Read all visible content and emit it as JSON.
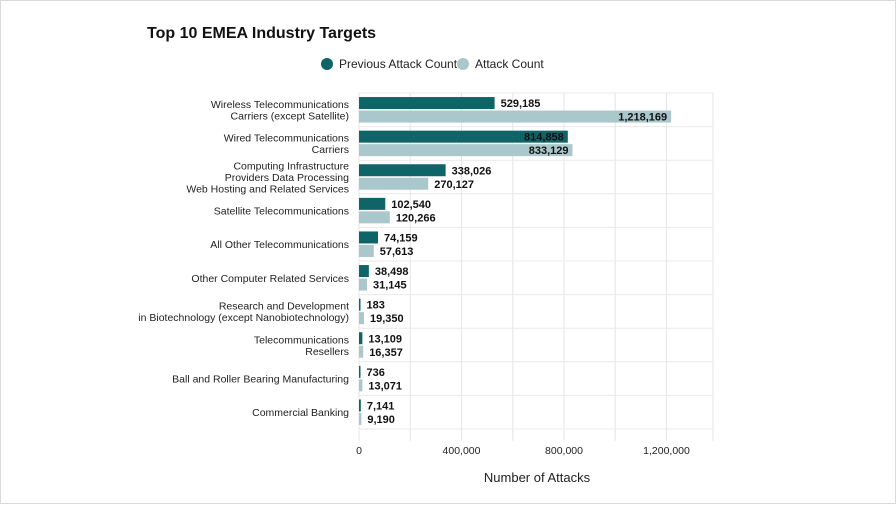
{
  "chart_data": {
    "type": "bar",
    "orientation": "horizontal",
    "title": "Top 10 EMEA Industry Targets",
    "xlabel": "Number of Attacks",
    "ylabel": "",
    "xlim": [
      0,
      1400000
    ],
    "xticks": [
      0,
      400000,
      800000,
      1200000
    ],
    "xtick_labels": [
      "0",
      "400,000",
      "800,000",
      "1,200,000"
    ],
    "legend_position": "top",
    "grid": true,
    "categories": [
      [
        "Wireless Telecommunications",
        "Carriers (except Satellite)"
      ],
      [
        "Wired Telecommunications",
        "Carriers"
      ],
      [
        "Computing Infrastructure",
        "Providers Data Processing",
        "Web Hosting and Related Services"
      ],
      [
        "Satellite Telecommunications"
      ],
      [
        "All Other Telecommunications"
      ],
      [
        "Other Computer Related Services"
      ],
      [
        "Research and Development",
        "in Biotechnology (except Nanobiotechnology)"
      ],
      [
        "Telecommunications",
        "Resellers"
      ],
      [
        "Ball and Roller Bearing Manufacturing"
      ],
      [
        "Commercial Banking"
      ]
    ],
    "series": [
      {
        "name": "Previous Attack Count",
        "color": "#0f6468",
        "values": [
          529185,
          814858,
          338026,
          102540,
          74159,
          38498,
          183,
          13109,
          736,
          7141
        ],
        "labels": [
          "529,185",
          "814,858",
          "338,026",
          "102,540",
          "74,159",
          "38,498",
          "183",
          "13,109",
          "736",
          "7,141"
        ]
      },
      {
        "name": "Attack Count",
        "color": "#aac8cc",
        "values": [
          1218169,
          833129,
          270127,
          120266,
          57613,
          31145,
          19350,
          16357,
          13071,
          9190
        ],
        "labels": [
          "1,218,169",
          "833,129",
          "270,127",
          "120,266",
          "57,613",
          "31,145",
          "19,350",
          "16,357",
          "13,071",
          "9,190"
        ]
      }
    ]
  }
}
